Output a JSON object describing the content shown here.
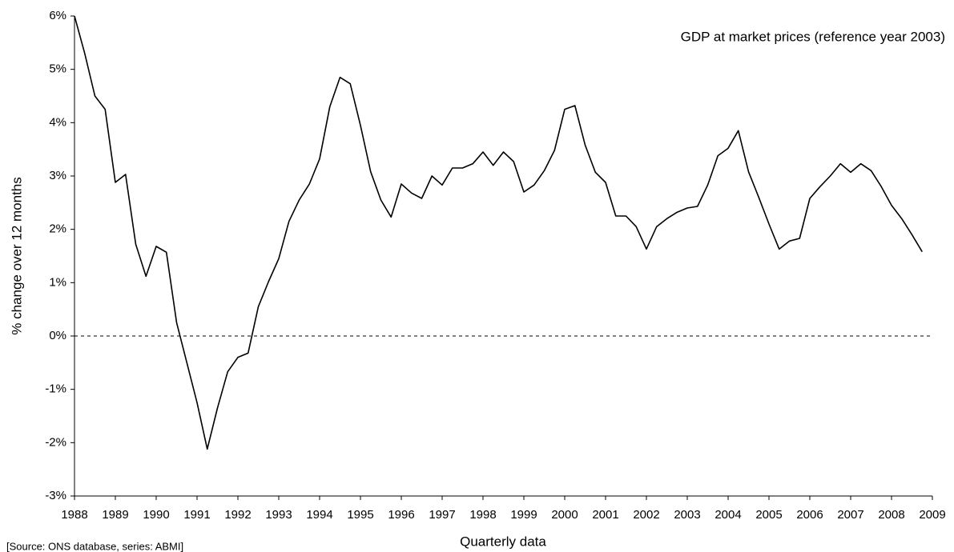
{
  "chart_data": {
    "type": "line",
    "title": "GDP at market prices (reference year 2003)",
    "xlabel": "Quarterly data",
    "ylabel": "% change over 12 months",
    "source": "[Source: ONS database, series: ABMI]",
    "x": [
      1988,
      1988.25,
      1988.5,
      1988.75,
      1989,
      1989.25,
      1989.5,
      1989.75,
      1990,
      1990.25,
      1990.5,
      1990.75,
      1991,
      1991.25,
      1991.5,
      1991.75,
      1992,
      1992.25,
      1992.5,
      1992.75,
      1993,
      1993.25,
      1993.5,
      1993.75,
      1994,
      1994.25,
      1994.5,
      1994.75,
      1995,
      1995.25,
      1995.5,
      1995.75,
      1996,
      1996.25,
      1996.5,
      1996.75,
      1997,
      1997.25,
      1997.5,
      1997.75,
      1998,
      1998.25,
      1998.5,
      1998.75,
      1999,
      1999.25,
      1999.5,
      1999.75,
      2000,
      2000.25,
      2000.5,
      2000.75,
      2001,
      2001.25,
      2001.5,
      2001.75,
      2002,
      2002.25,
      2002.5,
      2002.75,
      2003,
      2003.25,
      2003.5,
      2003.75,
      2004,
      2004.25,
      2004.5,
      2004.75,
      2005,
      2005.25,
      2005.5,
      2005.75,
      2006,
      2006.25,
      2006.5,
      2006.75,
      2007,
      2007.25,
      2007.5,
      2007.75,
      2008,
      2008.25,
      2008.5,
      2008.75
    ],
    "series": [
      {
        "name": "GDP at market prices",
        "color": "#000000",
        "values": [
          6.0,
          5.3,
          4.5,
          4.25,
          2.88,
          3.03,
          1.72,
          1.12,
          1.68,
          1.57,
          0.25,
          -0.5,
          -1.25,
          -2.12,
          -1.35,
          -0.67,
          -0.4,
          -0.32,
          0.55,
          1.02,
          1.45,
          2.15,
          2.55,
          2.85,
          3.32,
          4.3,
          4.85,
          4.73,
          3.95,
          3.08,
          2.55,
          2.23,
          2.85,
          2.68,
          2.58,
          3.0,
          2.83,
          3.15,
          3.15,
          3.23,
          3.45,
          3.2,
          3.45,
          3.27,
          2.7,
          2.83,
          3.1,
          3.48,
          4.25,
          4.32,
          3.58,
          3.07,
          2.88,
          2.25,
          2.25,
          2.05,
          1.63,
          2.05,
          2.2,
          2.32,
          2.4,
          2.43,
          2.83,
          3.38,
          3.52,
          3.85,
          3.08,
          2.6,
          2.1,
          1.63,
          1.78,
          1.83,
          2.58,
          2.8,
          3.0,
          3.23,
          3.07,
          3.23,
          3.1,
          2.8,
          2.45,
          2.2,
          1.9,
          1.58
        ]
      }
    ],
    "xlim": [
      1988,
      2009
    ],
    "xticks": [
      1988,
      1989,
      1990,
      1991,
      1992,
      1993,
      1994,
      1995,
      1996,
      1997,
      1998,
      1999,
      2000,
      2001,
      2002,
      2003,
      2004,
      2005,
      2006,
      2007,
      2008,
      2009
    ],
    "ylim": [
      -3,
      6
    ],
    "yticks": [
      {
        "value": -3,
        "label": "-3%"
      },
      {
        "value": -2,
        "label": "-2%"
      },
      {
        "value": -1,
        "label": "-1%"
      },
      {
        "value": 0,
        "label": "0%"
      },
      {
        "value": 1,
        "label": "1%"
      },
      {
        "value": 2,
        "label": "2%"
      },
      {
        "value": 3,
        "label": "3%"
      },
      {
        "value": 4,
        "label": "4%"
      },
      {
        "value": 5,
        "label": "5%"
      },
      {
        "value": 6,
        "label": "6%"
      }
    ],
    "reference_line": 0,
    "grid": false
  }
}
